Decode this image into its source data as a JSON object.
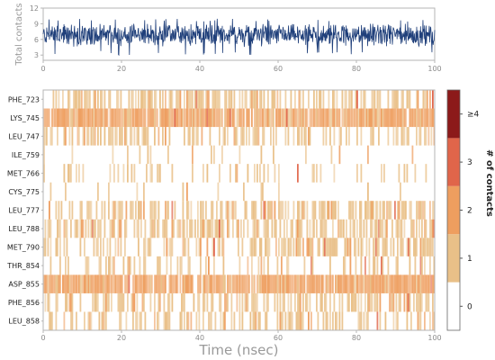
{
  "chart_data": [
    {
      "type": "line",
      "name": "total-contacts-timeseries",
      "ylabel": "Total contacts",
      "xlim": [
        0,
        100
      ],
      "ylim": [
        2,
        12
      ],
      "yticks": [
        3,
        6,
        9,
        12
      ],
      "xticks": [
        0,
        20,
        40,
        60,
        80,
        100
      ],
      "color": "#1f3f7a",
      "series": [
        {
          "mean": 6.8,
          "min": 3,
          "max": 10,
          "n_points": 1000
        }
      ]
    },
    {
      "type": "heatmap",
      "name": "residue-contacts-heatmap",
      "xlabel": "Time (nsec)",
      "xlim": [
        0,
        100
      ],
      "xticks": [
        0,
        20,
        40,
        60,
        80,
        100
      ],
      "residues": [
        "PHE_723",
        "LYS_745",
        "LEU_747",
        "ILE_759",
        "MET_766",
        "CYS_775",
        "LEU_777",
        "LEU_788",
        "MET_790",
        "THR_854",
        "ASP_855",
        "PHE_856",
        "LEU_858"
      ],
      "residue_colors": [
        "#222222",
        "#222222",
        "#222222",
        "#222222",
        "#222222",
        "#222222",
        "#222222",
        "#b0203a",
        "#222222",
        "#222222",
        "#222222",
        "#222222",
        "#222222"
      ],
      "contact_occupancy": [
        0.5,
        0.97,
        0.35,
        0.05,
        0.2,
        0.08,
        0.5,
        0.55,
        0.45,
        0.25,
        0.93,
        0.45,
        0.4
      ],
      "colorbar": {
        "title": "# of contacts",
        "levels": [
          "0",
          "1",
          "2",
          "3",
          "≥4"
        ],
        "colors": [
          "#ffffff",
          "#e9c088",
          "#ee9e5f",
          "#e0654a",
          "#8c1a1a"
        ]
      }
    }
  ]
}
